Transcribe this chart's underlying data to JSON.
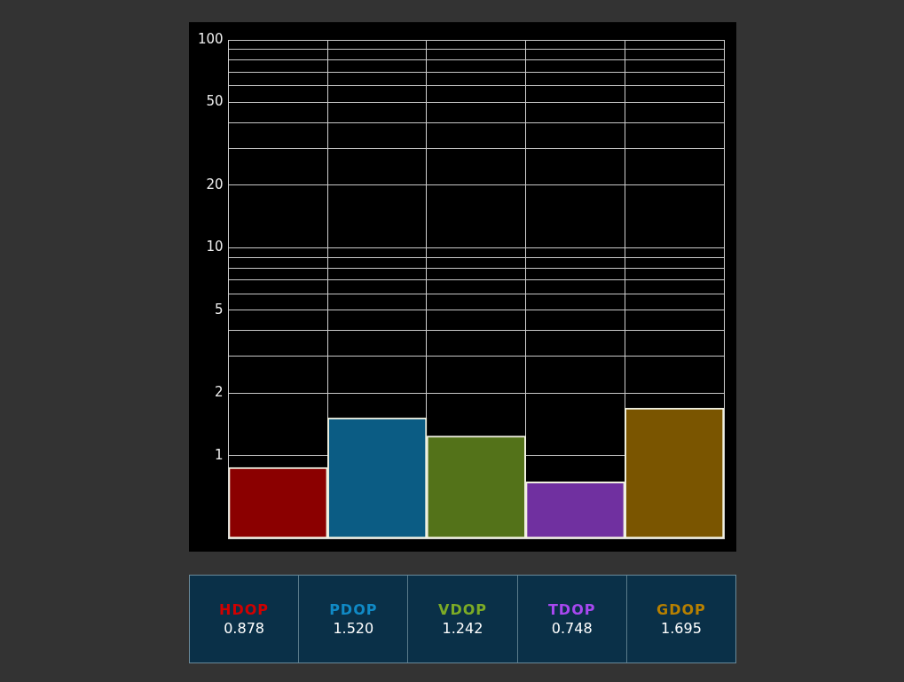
{
  "chart_data": {
    "type": "bar",
    "categories": [
      "HDOP",
      "PDOP",
      "VDOP",
      "TDOP",
      "GDOP"
    ],
    "values": [
      0.878,
      1.52,
      1.242,
      0.748,
      1.695
    ],
    "value_labels": [
      "0.878",
      "1.520",
      "1.242",
      "0.748",
      "1.695"
    ],
    "colors": [
      "#8b0000",
      "#0b5c84",
      "#537219",
      "#7030a0",
      "#7a5500"
    ],
    "log": "y",
    "ylim": [
      0.4,
      100
    ],
    "yticks": [
      1,
      2,
      {
        "value": 3,
        "label": null
      },
      {
        "value": 4,
        "label": null
      },
      5,
      {
        "value": 6,
        "label": null
      },
      {
        "value": 7,
        "label": null
      },
      {
        "value": 8,
        "label": null
      },
      {
        "value": 9,
        "label": null
      },
      10,
      20,
      {
        "value": 30,
        "label": null
      },
      {
        "value": 40,
        "label": null
      },
      50,
      {
        "value": 60,
        "label": null
      },
      {
        "value": 70,
        "label": null
      },
      {
        "value": 80,
        "label": null
      },
      {
        "value": 90,
        "label": null
      },
      100
    ],
    "grid": true,
    "tick_labels": "y"
  }
}
